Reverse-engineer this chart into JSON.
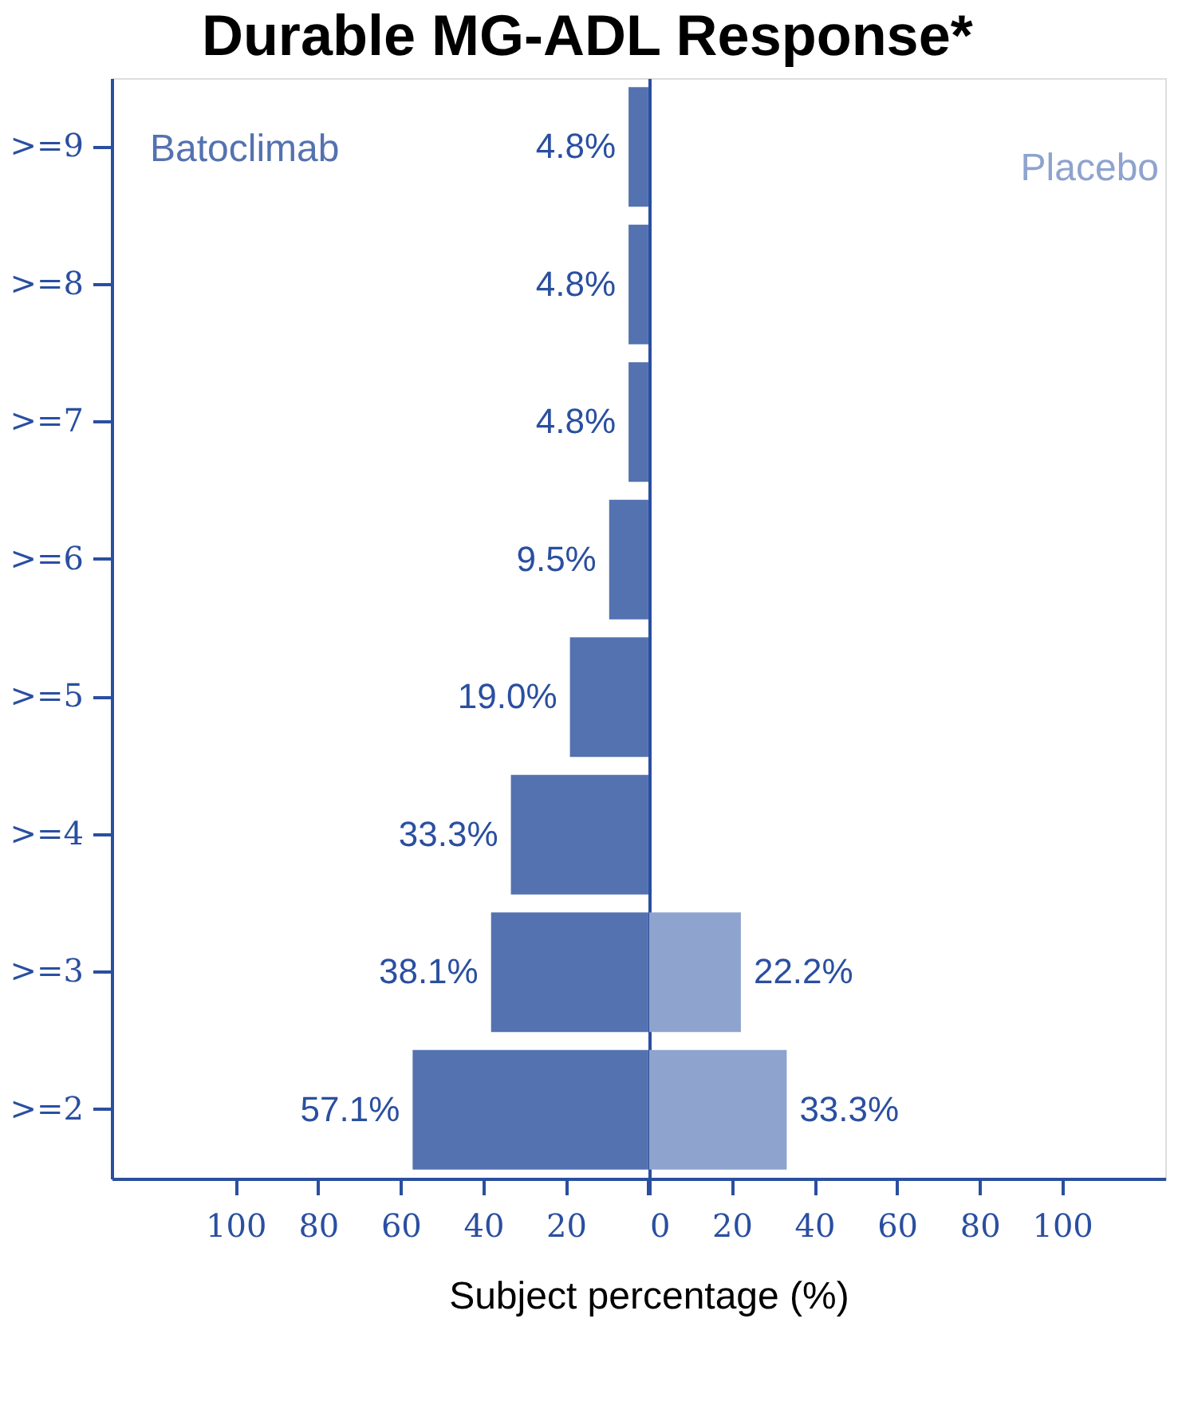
{
  "chart_data": [
    {
      "type": "bar",
      "orientation": "horizontal",
      "title": "Durable MG-ADL Response*",
      "xlabel": "Subject percentage (%)",
      "categories": [
        ">=9",
        ">=8",
        ">=7",
        ">=6",
        ">=5",
        ">=4",
        ">=3",
        ">=2"
      ],
      "series": [
        {
          "name": "Batoclimab",
          "color": "#5472b0",
          "values": [
            4.8,
            4.8,
            4.8,
            9.5,
            19.0,
            33.3,
            38.1,
            57.1
          ],
          "value_labels": [
            "4.8%",
            "4.8%",
            "4.8%",
            "9.5%",
            "19.0%",
            "33.3%",
            "38.1%",
            "57.1%"
          ]
        }
      ],
      "xlim": [
        130,
        0
      ],
      "xticks": [
        100,
        80,
        60,
        40,
        20,
        {
          "value": 0,
          "label": null
        }
      ],
      "grid": false,
      "legend": false
    },
    {
      "type": "bar",
      "orientation": "horizontal",
      "categories": [
        ">=9",
        ">=8",
        ">=7",
        ">=6",
        ">=5",
        ">=4",
        ">=3",
        ">=2"
      ],
      "series": [
        {
          "name": "Placebo",
          "color": "#8ea3cd",
          "values": [
            null,
            null,
            null,
            null,
            null,
            null,
            22.2,
            33.3
          ],
          "value_labels": [
            null,
            null,
            null,
            null,
            null,
            null,
            "22.2%",
            "33.3%"
          ]
        }
      ],
      "xlim": [
        0,
        125
      ],
      "xticks": [
        0,
        20,
        40,
        60,
        80,
        100
      ],
      "tick_labels": "x",
      "grid": false,
      "legend": false
    }
  ]
}
